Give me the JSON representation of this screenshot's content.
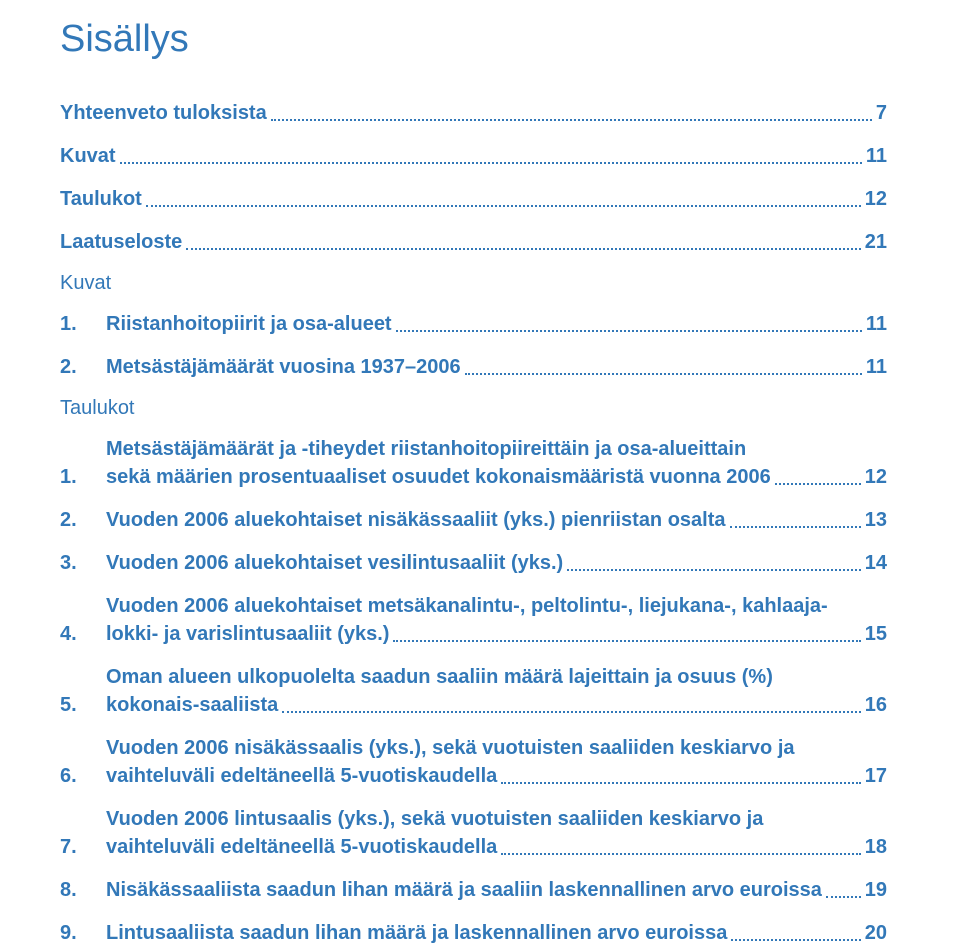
{
  "colors": {
    "text": "#3278b8",
    "background": "#ffffff",
    "dots": "#3278b8"
  },
  "typography": {
    "title_fontsize": 38,
    "row_fontsize": 20,
    "font_family": "Arial"
  },
  "title": "Sisällys",
  "top_entries": [
    {
      "label": "Yhteenveto tuloksista",
      "page": "7"
    },
    {
      "label": "Kuvat",
      "page": "11"
    },
    {
      "label": "Taulukot",
      "page": "12"
    },
    {
      "label": "Laatuseloste",
      "page": "21"
    }
  ],
  "kuvat_head": "Kuvat",
  "kuvat_entries": [
    {
      "num": "1.",
      "label": "Riistanhoitopiirit ja osa-alueet",
      "page": "11"
    },
    {
      "num": "2.",
      "label": "Metsästäjämäärät vuosina 1937–2006",
      "page": "11"
    }
  ],
  "taulukot_head": "Taulukot",
  "taulukot_entries": [
    {
      "num": "1.",
      "lines": [
        "Metsästäjämäärät ja -tiheydet riistanhoitopiireittäin ja osa-alueittain",
        "sekä määrien prosentuaaliset osuudet kokonaismääristä vuonna 2006"
      ],
      "page": "12"
    },
    {
      "num": "2.",
      "lines": [
        "Vuoden 2006 aluekohtaiset  nisäkässaaliit (yks.) pienriistan osalta"
      ],
      "page": "13"
    },
    {
      "num": "3.",
      "lines": [
        "Vuoden 2006 aluekohtaiset vesilintusaaliit (yks.)"
      ],
      "page": "14"
    },
    {
      "num": "4.",
      "lines": [
        "Vuoden 2006 aluekohtaiset metsäkanalintu-, peltolintu-, liejukana-, kahlaaja-",
        "lokki- ja varislintusaaliit (yks.)"
      ],
      "page": "15"
    },
    {
      "num": "5.",
      "lines": [
        "Oman alueen ulkopuolelta saadun saaliin määrä lajeittain ja osuus (%)",
        "kokonais-saaliista"
      ],
      "page": "16"
    },
    {
      "num": "6.",
      "lines": [
        "Vuoden 2006 nisäkässaalis (yks.), sekä vuotuisten saaliiden keskiarvo ja",
        "vaihteluväli edeltäneellä 5-vuotiskaudella"
      ],
      "page": "17"
    },
    {
      "num": "7.",
      "lines": [
        "Vuoden 2006 lintusaalis (yks.), sekä vuotuisten saaliiden keskiarvo ja",
        "vaihteluväli edeltäneellä 5-vuotiskaudella"
      ],
      "page": "18"
    },
    {
      "num": "8.",
      "lines": [
        "Nisäkässaaliista saadun lihan määrä ja saaliin  laskennallinen arvo euroissa"
      ],
      "page": "19"
    },
    {
      "num": "9.",
      "lines": [
        "Lintusaaliista saadun lihan määrä ja laskennallinen arvo euroissa"
      ],
      "page": "20"
    }
  ]
}
